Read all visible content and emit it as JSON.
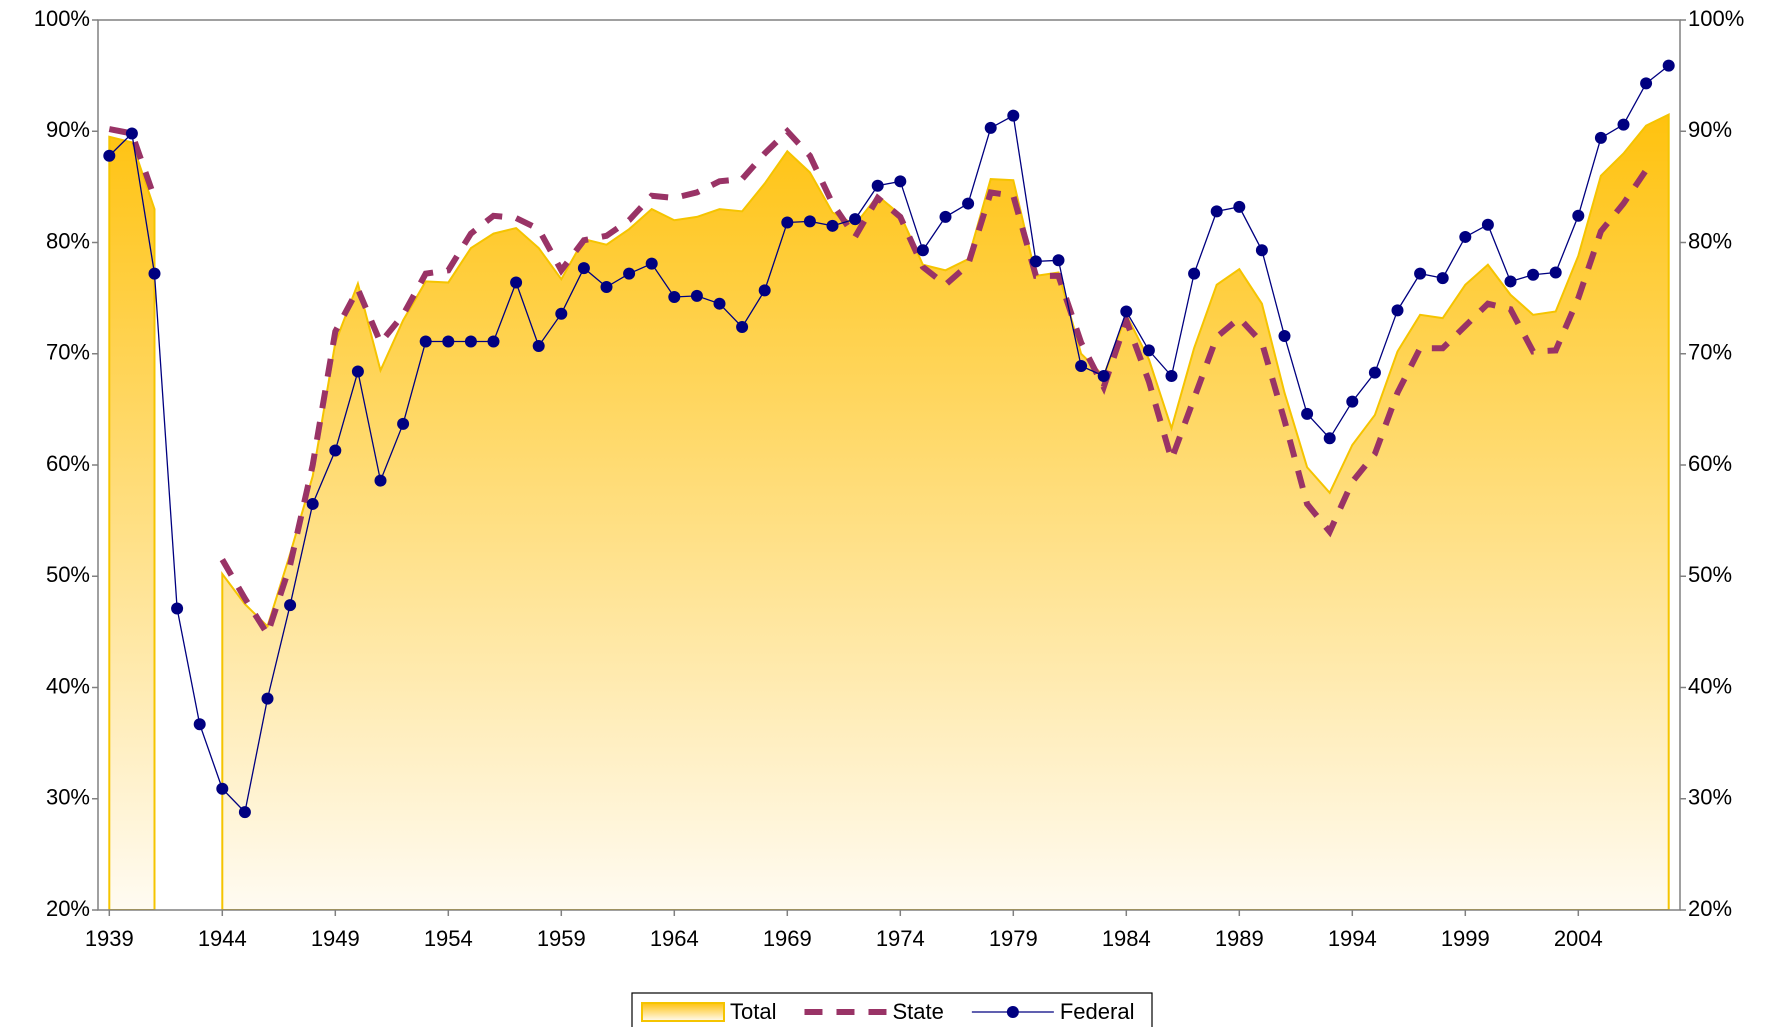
{
  "chart_data": {
    "type": "line",
    "x": [
      1939,
      1940,
      1941,
      1942,
      1943,
      1944,
      1945,
      1946,
      1947,
      1948,
      1949,
      1950,
      1951,
      1952,
      1953,
      1954,
      1955,
      1956,
      1957,
      1958,
      1959,
      1960,
      1961,
      1962,
      1963,
      1964,
      1965,
      1966,
      1967,
      1968,
      1969,
      1970,
      1971,
      1972,
      1973,
      1974,
      1975,
      1976,
      1977,
      1978,
      1979,
      1980,
      1981,
      1982,
      1983,
      1984,
      1985,
      1986,
      1987,
      1988,
      1989,
      1990,
      1991,
      1992,
      1993,
      1994,
      1995,
      1996,
      1997,
      1998,
      1999,
      2000,
      2001,
      2002,
      2003,
      2004,
      2005,
      2006,
      2007,
      2008
    ],
    "series": [
      {
        "name": "Total",
        "color": "#f5c400",
        "style": "area",
        "values": [
          89.5,
          89,
          83,
          null,
          null,
          50.2,
          47.5,
          45.5,
          52,
          59,
          71,
          76.3,
          68.5,
          73,
          76.5,
          76.4,
          79.5,
          80.8,
          81.3,
          79.5,
          76.7,
          80.3,
          79.8,
          81.2,
          83,
          82,
          82.3,
          83,
          82.8,
          85.3,
          88.2,
          86.3,
          82.7,
          81.6,
          84.2,
          82.5,
          78,
          77.5,
          78.5,
          85.7,
          85.6,
          77,
          77.3,
          70,
          68,
          73.5,
          69.5,
          63.3,
          70.5,
          76.2,
          77.6,
          74.5,
          66.5,
          59.8,
          57.5,
          61.8,
          64.5,
          70.2,
          73.5,
          73.2,
          76.2,
          78,
          75.3,
          73.5,
          73.8,
          78.8,
          86,
          88,
          90.5,
          91.5
        ]
      },
      {
        "name": "State",
        "color": "#993366",
        "style": "dashed",
        "values": [
          90.2,
          89.8,
          84,
          null,
          null,
          51.5,
          48,
          44.8,
          51,
          60,
          72,
          75.8,
          71,
          73.5,
          77.2,
          77.5,
          80.8,
          82.4,
          82.2,
          81.2,
          77.5,
          80.2,
          80.6,
          82,
          84.2,
          84,
          84.5,
          85.5,
          85.7,
          88,
          90,
          87.8,
          83.5,
          80.5,
          84,
          82.3,
          77.8,
          76.2,
          78,
          84.5,
          84.2,
          77,
          77,
          71,
          67,
          73,
          67.5,
          60.5,
          66,
          71.5,
          73.2,
          71,
          64,
          56.5,
          54,
          58.5,
          61,
          66.5,
          70.5,
          70.5,
          72.5,
          74.5,
          74,
          70.2,
          70.3,
          75,
          81,
          83.5,
          86.5,
          null
        ]
      },
      {
        "name": "Federal",
        "color": "#000080",
        "style": "marker",
        "values": [
          87.8,
          89.8,
          77.2,
          47.1,
          36.7,
          30.9,
          28.8,
          39,
          47.4,
          56.5,
          61.3,
          68.4,
          58.6,
          63.7,
          71.1,
          71.1,
          71.1,
          71.1,
          76.4,
          70.7,
          73.6,
          77.7,
          76,
          77.2,
          78.1,
          75.1,
          75.2,
          74.5,
          72.4,
          75.7,
          81.8,
          81.9,
          81.5,
          82.1,
          85.1,
          85.5,
          79.3,
          82.3,
          83.5,
          90.3,
          91.4,
          78.3,
          78.4,
          68.9,
          68,
          73.8,
          70.3,
          68,
          77.2,
          82.8,
          83.2,
          79.3,
          71.6,
          64.6,
          62.4,
          65.7,
          68.3,
          73.9,
          77.2,
          76.8,
          80.5,
          81.6,
          76.5,
          77.1,
          77.3,
          82.4,
          89.4,
          90.6,
          94.3,
          95.9
        ]
      }
    ],
    "xlim": [
      1938.5,
      2008.5
    ],
    "xticks": [
      1939,
      1944,
      1949,
      1954,
      1959,
      1964,
      1969,
      1974,
      1979,
      1984,
      1989,
      1994,
      1999,
      2004
    ],
    "ylim": [
      20,
      100
    ],
    "yticks": [
      {
        "value": 20,
        "label": "20%"
      },
      {
        "value": 30,
        "label": "30%"
      },
      {
        "value": 40,
        "label": "40%"
      },
      {
        "value": 50,
        "label": "50%"
      },
      {
        "value": 60,
        "label": "60%"
      },
      {
        "value": 70,
        "label": "70%"
      },
      {
        "value": 80,
        "label": "80%"
      },
      {
        "value": 90,
        "label": "90%"
      },
      {
        "value": 100,
        "label": "100%"
      }
    ],
    "legend": "bottom"
  }
}
